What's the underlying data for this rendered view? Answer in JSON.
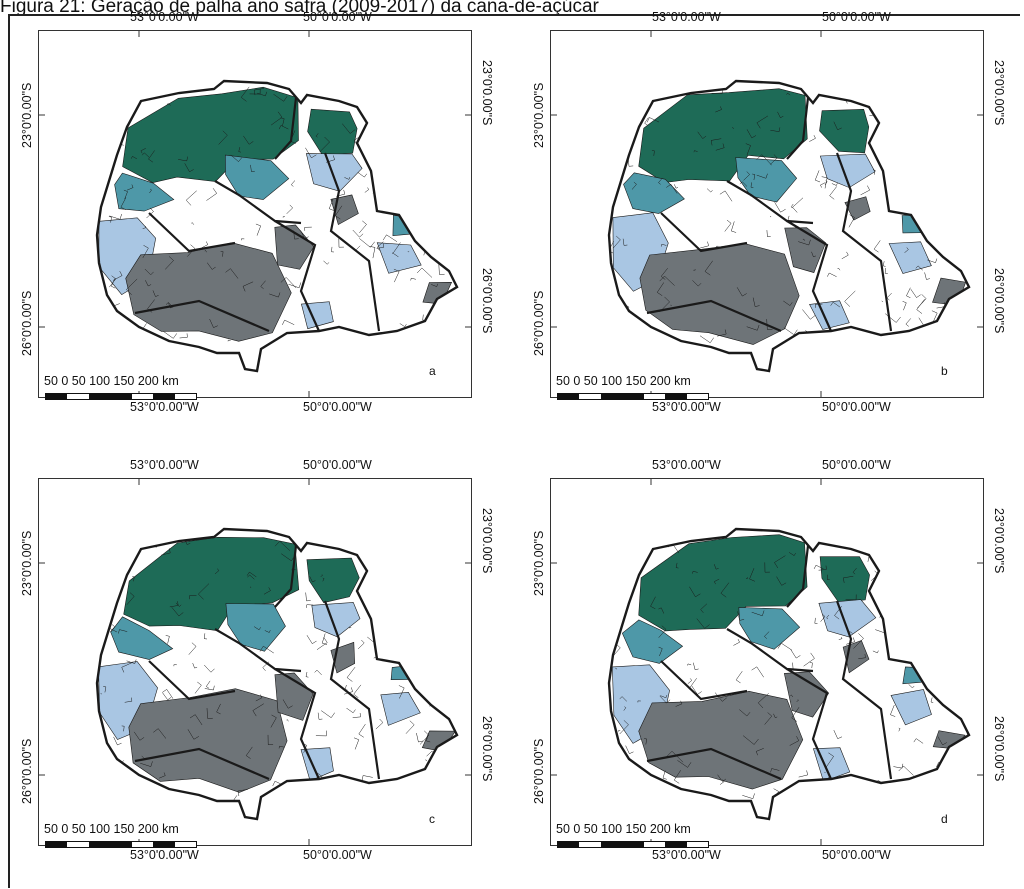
{
  "figure": {
    "title": "Figura 21: Geração de palha ano safra (2009-2017) da cana-de-açúcar"
  },
  "map_labels": {
    "lon_left": "53°0'0.00\"W",
    "lon_right": "50°0'0.00\"W",
    "lat_top": "23°0'0.00\"S",
    "lat_bottom": "26°0'0.00\"S",
    "scale_text": "50   0   50  100 150 200 km"
  },
  "colors": {
    "dark_green": "#1e6b57",
    "teal": "#4e98a8",
    "light_blue": "#a9c6e3",
    "gray": "#6e7478",
    "white": "#ffffff",
    "outline": "#1a1a1a"
  },
  "panels": [
    {
      "letter": "a"
    },
    {
      "letter": "b"
    },
    {
      "letter": "c"
    },
    {
      "letter": "d"
    }
  ]
}
